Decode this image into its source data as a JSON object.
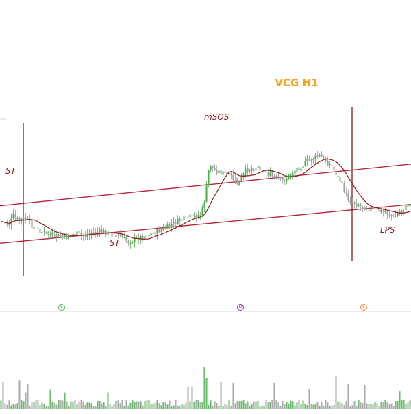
{
  "chart_data": {
    "type": "candlestick",
    "title": "VCG H1",
    "colors": {
      "title": "#f5a623",
      "annotation": "#8b1a1a",
      "channel": "#b22234",
      "ma": "#8b1a1a",
      "event_line": "#8b1a1a",
      "up": "#4caf50",
      "down": "#9e9e9e",
      "baseline": "#d9d9d9"
    },
    "annotations": [
      {
        "id": "st-left",
        "text": "ST"
      },
      {
        "id": "st-bottom",
        "text": "ST"
      },
      {
        "id": "msos",
        "text": "mSOS"
      },
      {
        "id": "lps",
        "text": "LPS"
      }
    ],
    "markers": [
      {
        "id": "marker-e",
        "text": "E",
        "color": "#4caf50"
      },
      {
        "id": "marker-d",
        "text": "D",
        "color": "#9c27b0"
      },
      {
        "id": "marker-s",
        "text": "S",
        "color": "#f08a3c"
      }
    ],
    "channel": {
      "upper": [
        [
          0,
          0.33
        ],
        [
          1,
          0.62
        ]
      ],
      "lower": [
        [
          0,
          0.07
        ],
        [
          1,
          0.34
        ]
      ]
    },
    "price_path": [
      [
        0,
        0.22
      ],
      [
        0.02,
        0.2
      ],
      [
        0.03,
        0.26
      ],
      [
        0.04,
        0.23
      ],
      [
        0.06,
        0.24
      ],
      [
        0.08,
        0.18
      ],
      [
        0.1,
        0.15
      ],
      [
        0.13,
        0.12
      ],
      [
        0.16,
        0.11
      ],
      [
        0.18,
        0.14
      ],
      [
        0.2,
        0.12
      ],
      [
        0.22,
        0.14
      ],
      [
        0.25,
        0.15
      ],
      [
        0.27,
        0.13
      ],
      [
        0.29,
        0.12
      ],
      [
        0.31,
        0.08
      ],
      [
        0.33,
        0.1
      ],
      [
        0.35,
        0.12
      ],
      [
        0.37,
        0.14
      ],
      [
        0.4,
        0.17
      ],
      [
        0.43,
        0.22
      ],
      [
        0.46,
        0.25
      ],
      [
        0.49,
        0.27
      ],
      [
        0.5,
        0.4
      ],
      [
        0.51,
        0.63
      ],
      [
        0.52,
        0.58
      ],
      [
        0.54,
        0.56
      ],
      [
        0.56,
        0.54
      ],
      [
        0.58,
        0.48
      ],
      [
        0.6,
        0.58
      ],
      [
        0.63,
        0.6
      ],
      [
        0.66,
        0.54
      ],
      [
        0.69,
        0.5
      ],
      [
        0.72,
        0.58
      ],
      [
        0.75,
        0.64
      ],
      [
        0.78,
        0.68
      ],
      [
        0.81,
        0.6
      ],
      [
        0.83,
        0.5
      ],
      [
        0.85,
        0.37
      ],
      [
        0.88,
        0.33
      ],
      [
        0.91,
        0.3
      ],
      [
        0.94,
        0.29
      ],
      [
        0.96,
        0.25
      ],
      [
        0.98,
        0.3
      ],
      [
        1.0,
        0.34
      ]
    ]
  }
}
